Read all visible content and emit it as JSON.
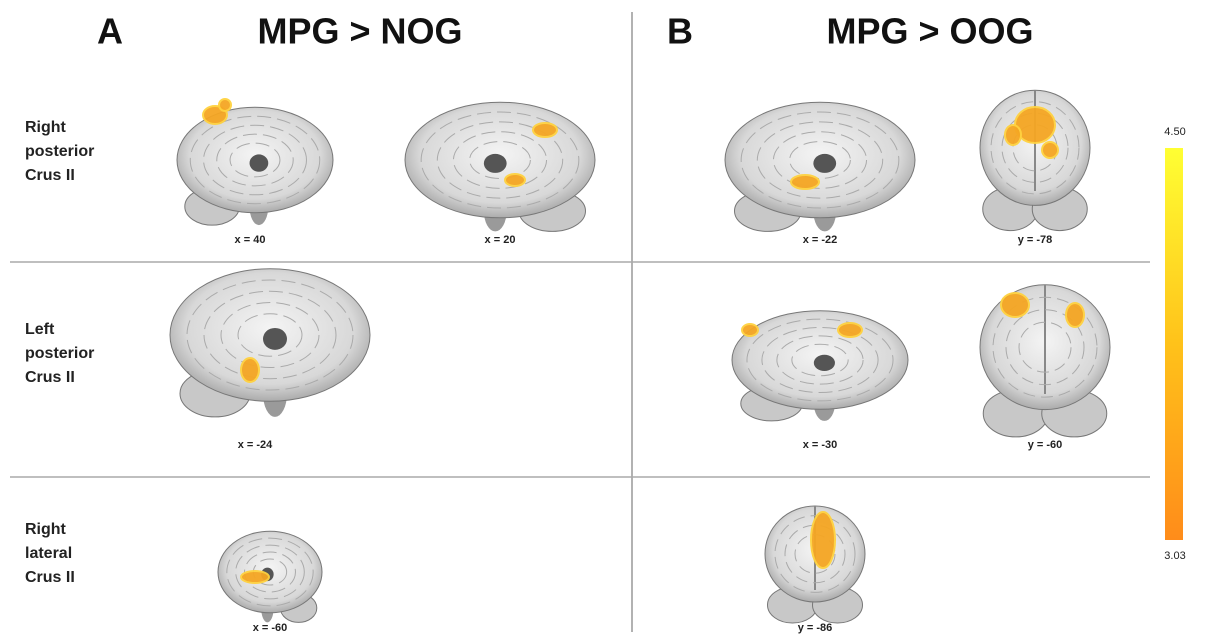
{
  "panels": [
    {
      "letter": "A",
      "title": "MPG > NOG"
    },
    {
      "letter": "B",
      "title": "MPG > OOG"
    }
  ],
  "rows": [
    {
      "label": [
        "Right",
        "posterior",
        "Crus II"
      ]
    },
    {
      "label": [
        "Left",
        "posterior",
        "Crus II"
      ]
    },
    {
      "label": [
        "Right",
        "lateral",
        "Crus II"
      ]
    }
  ],
  "images": [
    {
      "caption": "x = 40"
    },
    {
      "caption": "x = 20"
    },
    {
      "caption": "x = -22"
    },
    {
      "caption": "y = -78"
    },
    {
      "caption": "x = -24"
    },
    {
      "caption": "x = -30"
    },
    {
      "caption": "y = -60"
    },
    {
      "caption": "x = -60"
    },
    {
      "caption": "y = -86"
    }
  ],
  "colorbar": {
    "max": "4.50",
    "min": "3.03"
  }
}
